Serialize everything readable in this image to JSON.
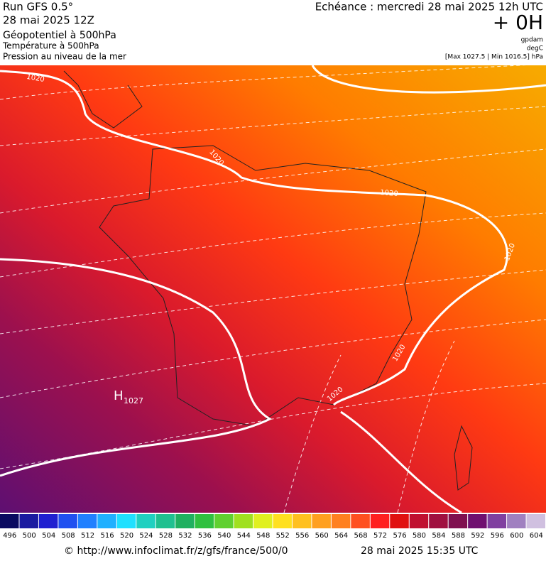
{
  "header": {
    "run": "Run GFS 0.5°",
    "run_date": "28 mai 2025 12Z",
    "field1": "Géopotentiel à 500hPa",
    "field2": "Température à 500hPa",
    "field3": "Pression au niveau de la mer",
    "echeance": "Echéance : mercredi 28 mai 2025 12h UTC",
    "offset": "+ 0H",
    "unit1": "gpdam",
    "unit2": "degC",
    "pressure_range": "[Max 1027.5 | Min 1016.5] hPa"
  },
  "map": {
    "isobar_labels": [
      "1020",
      "1020",
      "1020",
      "1020",
      "1020",
      "1020"
    ],
    "high": {
      "letter": "H",
      "value": "1027"
    }
  },
  "scale": {
    "items": [
      {
        "label": "496",
        "color": "#0a0a60"
      },
      {
        "label": "500",
        "color": "#1a1aa0"
      },
      {
        "label": "504",
        "color": "#2020d0"
      },
      {
        "label": "508",
        "color": "#2050f0"
      },
      {
        "label": "512",
        "color": "#2080ff"
      },
      {
        "label": "516",
        "color": "#20b0ff"
      },
      {
        "label": "520",
        "color": "#20e0ff"
      },
      {
        "label": "524",
        "color": "#20d0c0"
      },
      {
        "label": "528",
        "color": "#20c090"
      },
      {
        "label": "532",
        "color": "#20b060"
      },
      {
        "label": "536",
        "color": "#30c040"
      },
      {
        "label": "540",
        "color": "#60d030"
      },
      {
        "label": "544",
        "color": "#a0e020"
      },
      {
        "label": "548",
        "color": "#e0f020"
      },
      {
        "label": "552",
        "color": "#ffe020"
      },
      {
        "label": "556",
        "color": "#ffc020"
      },
      {
        "label": "560",
        "color": "#ffa020"
      },
      {
        "label": "564",
        "color": "#ff8020"
      },
      {
        "label": "568",
        "color": "#ff5020"
      },
      {
        "label": "572",
        "color": "#ff2020"
      },
      {
        "label": "576",
        "color": "#e01010"
      },
      {
        "label": "580",
        "color": "#c01030"
      },
      {
        "label": "584",
        "color": "#a01040"
      },
      {
        "label": "588",
        "color": "#801050"
      },
      {
        "label": "592",
        "color": "#701070"
      },
      {
        "label": "596",
        "color": "#8040a0"
      },
      {
        "label": "600",
        "color": "#a080c0"
      },
      {
        "label": "604",
        "color": "#d0c0e0"
      }
    ]
  },
  "footer": {
    "source": "© http://www.infoclimat.fr/z/gfs/france/500/0",
    "generated": "28 mai 2025 15:35 UTC"
  }
}
